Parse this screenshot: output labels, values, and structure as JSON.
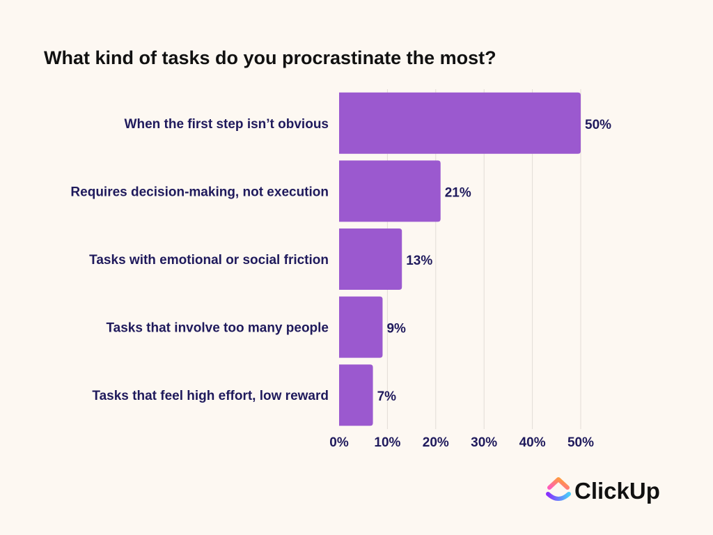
{
  "chart_data": {
    "type": "bar",
    "orientation": "horizontal",
    "title": "What kind of tasks do you procrastinate the most?",
    "categories": [
      "When the first step isn’t obvious",
      "Requires decision-making, not execution",
      "Tasks with emotional or social friction",
      "Tasks that involve too many people",
      "Tasks that feel high effort, low reward"
    ],
    "values": [
      50,
      21,
      13,
      9,
      7
    ],
    "value_labels": [
      "50%",
      "21%",
      "13%",
      "9%",
      "7%"
    ],
    "xlim": [
      0,
      50
    ],
    "x_ticks": [
      0,
      10,
      20,
      30,
      40,
      50
    ],
    "x_tick_labels": [
      "0%",
      "10%",
      "20%",
      "30%",
      "40%",
      "50%"
    ],
    "grid": true,
    "bar_color": "#9b59cf",
    "text_color": "#1f1a5c",
    "grid_color": "#e2dcd6"
  },
  "brand": {
    "name": "ClickUp",
    "logo_colors": [
      "#ff5bbd",
      "#ffa726",
      "#8930fd",
      "#49ccf9"
    ]
  },
  "background_color": "#fdf8f2"
}
